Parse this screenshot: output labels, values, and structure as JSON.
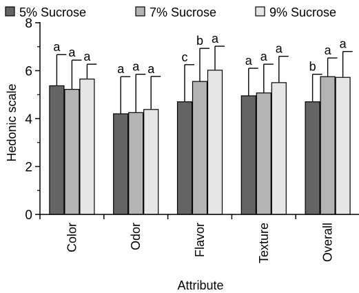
{
  "chart_data": {
    "type": "bar",
    "title": "",
    "xlabel": "Attribute",
    "ylabel": "Hedonic scale",
    "ylim": [
      0,
      8
    ],
    "yticks": [
      0,
      2,
      4,
      6,
      8
    ],
    "categories": [
      "Color",
      "Odor",
      "Flavor",
      "Texture",
      "Overall"
    ],
    "legend_position": "top",
    "grid": false,
    "error_bars": true,
    "series": [
      {
        "name": "5% Sucrose",
        "color": "#646464",
        "values": [
          5.37,
          4.2,
          4.7,
          4.95,
          4.7
        ],
        "errors": [
          1.3,
          1.55,
          1.55,
          1.15,
          1.15
        ],
        "letters": [
          "a",
          "a",
          "c",
          "a",
          "b"
        ]
      },
      {
        "name": "7% Sucrose",
        "color": "#b4b4b4",
        "values": [
          5.22,
          4.25,
          5.55,
          5.07,
          5.75
        ],
        "errors": [
          1.22,
          1.6,
          1.38,
          1.2,
          0.78
        ],
        "letters": [
          "a",
          "a",
          "b",
          "a",
          "a"
        ]
      },
      {
        "name": "9% Sucrose",
        "color": "#e6e6e6",
        "values": [
          5.65,
          4.38,
          6.02,
          5.5,
          5.72
        ],
        "errors": [
          0.62,
          1.38,
          1.0,
          1.1,
          1.08
        ],
        "letters": [
          "a",
          "a",
          "a",
          "a",
          "a"
        ]
      }
    ]
  }
}
